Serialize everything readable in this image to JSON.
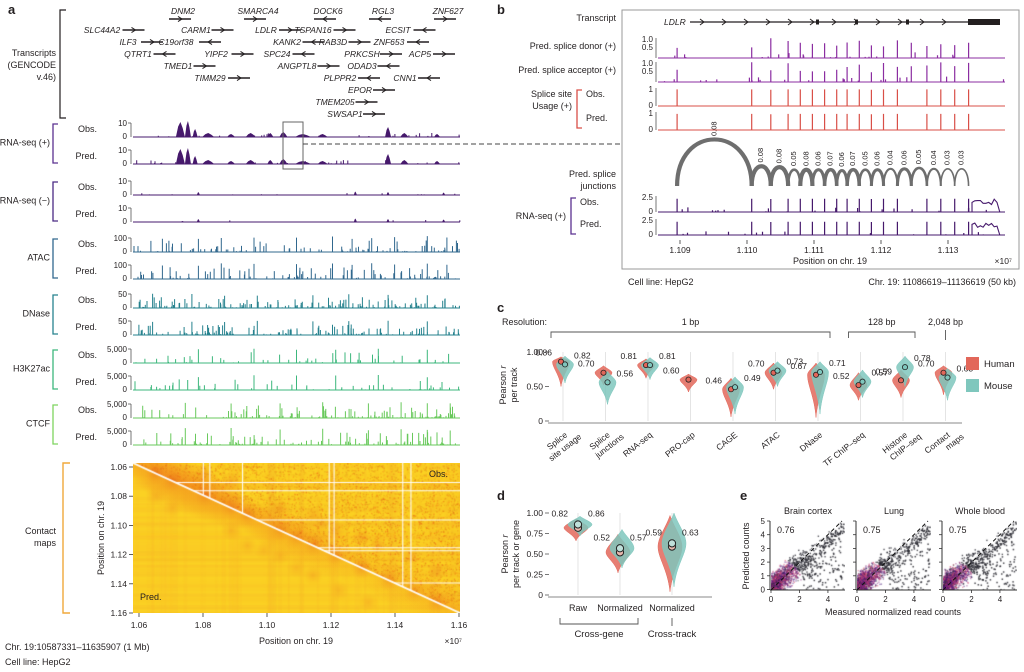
{
  "panel_a": {
    "label": "a",
    "transcripts_label_lines": [
      "Transcripts",
      "(GENCODE",
      "v.46)"
    ],
    "gene_rows": [
      {
        "genes": [
          {
            "name": "DNM2",
            "x": 183,
            "d": 1
          },
          {
            "name": "SMARCA4",
            "x": 258,
            "d": 1
          },
          {
            "name": "DOCK6",
            "x": 328,
            "d": -1
          },
          {
            "name": "RGL3",
            "x": 383,
            "d": -1
          },
          {
            "name": "ZNF627",
            "x": 448,
            "d": 1
          }
        ]
      },
      {
        "genes": [
          {
            "name": "SLC44A2",
            "x": 102,
            "d": 1
          },
          {
            "name": "CARM1",
            "x": 196,
            "d": 1
          },
          {
            "name": "LDLR",
            "x": 266,
            "d": 1
          },
          {
            "name": "TSPAN16",
            "x": 313,
            "d": 1
          },
          {
            "name": "ECSIT",
            "x": 398,
            "d": -1
          }
        ]
      },
      {
        "genes": [
          {
            "name": "ILF3",
            "x": 128,
            "d": 1
          },
          {
            "name": "C19orf38",
            "x": 176,
            "d": -1
          },
          {
            "name": "KANK2",
            "x": 287,
            "d": -1
          },
          {
            "name": "RAB3D",
            "x": 333,
            "d": 1
          },
          {
            "name": "ZNF653",
            "x": 389,
            "d": -1
          }
        ]
      },
      {
        "genes": [
          {
            "name": "QTRT1",
            "x": 138,
            "d": -1
          },
          {
            "name": "YIPF2",
            "x": 216,
            "d": 1
          },
          {
            "name": "SPC24",
            "x": 277,
            "d": -1
          },
          {
            "name": "PRKCSH",
            "x": 362,
            "d": 1
          },
          {
            "name": "ACP5",
            "x": 420,
            "d": 1
          }
        ]
      },
      {
        "genes": [
          {
            "name": "TMED1",
            "x": 178,
            "d": 1
          },
          {
            "name": "ANGPTL8",
            "x": 297,
            "d": 1
          },
          {
            "name": "ODAD3",
            "x": 362,
            "d": -1
          }
        ]
      },
      {
        "genes": [
          {
            "name": "TIMM29",
            "x": 210,
            "d": 1
          },
          {
            "name": "PLPPR2",
            "x": 340,
            "d": -1
          },
          {
            "name": "CNN1",
            "x": 405,
            "d": -1
          }
        ]
      },
      {
        "genes": [
          {
            "name": "EPOR",
            "x": 360,
            "d": 1
          }
        ]
      },
      {
        "genes": [
          {
            "name": "TMEM205",
            "x": 335,
            "d": 1
          }
        ]
      },
      {
        "genes": [
          {
            "name": "SWSAP1",
            "x": 345,
            "d": 1
          }
        ]
      }
    ],
    "tracks": [
      {
        "group": "RNA-seq (+)",
        "color": "#46196c",
        "bracket": "#5a3190",
        "ymax": "10",
        "ymin": "0",
        "rows": [
          "Obs.",
          "Pred."
        ]
      },
      {
        "group": "RNA-seq (−)",
        "color": "#46196c",
        "bracket": "#4a2a84",
        "ymax": "10",
        "ymin": "0",
        "rows": [
          "Obs.",
          "Pred."
        ]
      },
      {
        "group": "ATAC",
        "color": "#31688e",
        "bracket": "#31688e",
        "ymax": "100",
        "ymin": "0",
        "rows": [
          "Obs.",
          "Pred."
        ]
      },
      {
        "group": "DNase",
        "color": "#26828e",
        "bracket": "#26828e",
        "ymax": "50",
        "ymin": "0",
        "rows": [
          "Obs.",
          "Pred."
        ]
      },
      {
        "group": "H3K27ac",
        "color": "#3cb77c",
        "bracket": "#3cb77c",
        "ymax": "5,000",
        "ymin": "0",
        "rows": [
          "Obs.",
          "Pred."
        ]
      },
      {
        "group": "CTCF",
        "color": "#69c95c",
        "bracket": "#7ed45f",
        "ymax": "5,000",
        "ymin": "0",
        "rows": [
          "Obs.",
          "Pred."
        ]
      }
    ],
    "contact": {
      "group_label_lines": [
        "Contact",
        "maps"
      ],
      "obs": "Obs.",
      "pred": "Pred.",
      "ylabel": "Position on chr. 19",
      "xlabel": "Position on chr. 19",
      "yticks": [
        "1.06",
        "1.08",
        "1.10",
        "1.12",
        "1.14",
        "1.16"
      ],
      "xticks": [
        "1.06",
        "1.08",
        "1.10",
        "1.12",
        "1.14",
        "1.16"
      ],
      "exp": "×10⁷",
      "bracket_color": "#f0a93b"
    },
    "footer_region": "Chr. 19:10587331–11635907 (1 Mb)",
    "footer_cellline": "Cell line: HepG2"
  },
  "panel_b": {
    "label": "b",
    "gene": "LDLR",
    "row_labels": {
      "transcript": "Transcript",
      "donor": "Pred. splice donor (+)",
      "acceptor": "Pred. splice acceptor (+)",
      "usage_line1": "Splice site",
      "usage_line2": "Usage (+)",
      "usage_obs": "Obs.",
      "usage_pred": "Pred.",
      "junctions_line1": "Pred. splice",
      "junctions_line2": "junctions",
      "rna": "RNA-seq (+)",
      "rna_obs": "Obs.",
      "rna_pred": "Pred."
    },
    "scales": {
      "donor_hi": "1.0",
      "donor_lo": "0.5",
      "usage_hi": "1",
      "usage_lo": "0",
      "rna_hi": "2.5",
      "rna_lo": "0"
    },
    "junction_values": [
      0.08,
      0.08,
      0.08,
      0.05,
      0.08,
      0.06,
      0.07,
      0.06,
      0.07,
      0.05,
      0.06,
      0.04,
      0.06,
      0.05,
      0.04,
      0.03,
      0.03
    ],
    "xticks": [
      "1.109",
      "1.110",
      "1.111",
      "1.112",
      "1.113"
    ],
    "xlabel": "Position on chr. 19",
    "exp": "×10⁷",
    "footer_cellline": "Cell line: HepG2",
    "footer_region": "Chr. 19: 11086619–11136619 (50 kb)",
    "colors": {
      "splice": "#8b2da1",
      "usage": "#d94f47",
      "junction": "#6e6e6e",
      "rna": "#46196c"
    }
  },
  "chart_data": [
    {
      "id": "c",
      "type": "violin",
      "resolution_label": "Resolution:",
      "resolution_groups": [
        {
          "label": "1 bp",
          "from": 0,
          "to": 6
        },
        {
          "label": "128 bp",
          "from": 7,
          "to": 8
        },
        {
          "label": "2,048 bp",
          "from": 9,
          "to": 9
        }
      ],
      "ylabel_pre": "Pearson ",
      "ylabel_it": "r",
      "ylabel_line2": "per track",
      "yticks": [
        "1.00",
        "0.50",
        "0"
      ],
      "ylim": [
        0,
        1
      ],
      "categories": [
        "Splice\nsite usage",
        "Splice\njunctions",
        "RNA-seq",
        "PRO-cap",
        "CAGE",
        "ATAC",
        "DNase",
        "TF ChIP–seq",
        "Histone\nChIP–seq",
        "Contact\nmaps"
      ],
      "series": [
        {
          "name": "Human",
          "color": "#e2675a",
          "values": [
            0.86,
            0.7,
            0.81,
            0.6,
            0.46,
            0.7,
            0.67,
            0.52,
            0.59,
            0.7
          ]
        },
        {
          "name": "Mouse",
          "color": "#7fc7bd",
          "values": [
            0.82,
            0.56,
            0.81,
            null,
            0.49,
            0.73,
            0.71,
            0.57,
            0.78,
            0.63
          ]
        }
      ],
      "shapes": {
        "human": [
          [
            0.93,
            0.5
          ],
          [
            0.8,
            0.52
          ],
          [
            0.9,
            0.62
          ],
          [
            0.68,
            0.42
          ],
          [
            0.62,
            0.06
          ],
          [
            0.84,
            0.46
          ],
          [
            0.84,
            0.05
          ],
          [
            0.7,
            0.3
          ],
          [
            0.74,
            0.34
          ],
          [
            0.8,
            0.38
          ]
        ],
        "mouse": [
          [
            0.94,
            0.55
          ],
          [
            0.72,
            0.24
          ],
          [
            0.92,
            0.6
          ],
          [
            0,
            0
          ],
          [
            0.64,
            0.1
          ],
          [
            0.86,
            0.5
          ],
          [
            0.86,
            0.1
          ],
          [
            0.74,
            0.34
          ],
          [
            0.94,
            0.5
          ],
          [
            0.76,
            0.3
          ]
        ]
      },
      "legend": [
        {
          "label": "Human",
          "color": "#e2675a"
        },
        {
          "label": "Mouse",
          "color": "#7fc7bd"
        }
      ]
    },
    {
      "id": "d",
      "type": "violin",
      "ylabel_pre": "Pearson ",
      "ylabel_it": "r",
      "ylabel_line2": "per track or gene",
      "yticks": [
        "1.00",
        "0.75",
        "0.50",
        "0.25",
        "0"
      ],
      "ylim": [
        0,
        1
      ],
      "categories": [
        "Raw",
        "Normalized",
        "Normalized"
      ],
      "series": [
        {
          "name": "Human",
          "color": "#e2675a",
          "values": [
            0.82,
            0.52,
            0.59
          ]
        },
        {
          "name": "Mouse",
          "color": "#7fc7bd",
          "values": [
            0.86,
            0.57,
            0.63
          ]
        }
      ],
      "shapes": {
        "human": [
          [
            0.93,
            0.66
          ],
          [
            0.74,
            0.27
          ],
          [
            0.97,
            0.04
          ]
        ],
        "mouse": [
          [
            0.96,
            0.72
          ],
          [
            0.8,
            0.33
          ],
          [
            1.0,
            0.1
          ]
        ]
      },
      "group_brackets": [
        {
          "label": "Cross-gene",
          "from": 0,
          "to": 1
        },
        {
          "label": "Cross-track",
          "from": 2,
          "to": 2
        }
      ]
    },
    {
      "id": "e",
      "type": "scatter",
      "plots": [
        {
          "title": "Brain cortex",
          "pearson_r": 0.76
        },
        {
          "title": "Lung",
          "pearson_r": 0.75
        },
        {
          "title": "Whole blood",
          "pearson_r": 0.75
        }
      ],
      "ylabel": "Predicted counts",
      "xlabel": "Measured normalized read counts",
      "yticks": [
        "5",
        "4",
        "3",
        "2",
        "1",
        "0"
      ],
      "xticks": [
        "0",
        "2",
        "4"
      ]
    }
  ]
}
